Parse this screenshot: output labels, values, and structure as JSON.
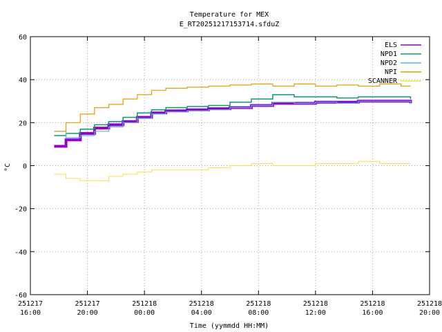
{
  "chart_data": {
    "type": "line",
    "title": "Temperature for MEX",
    "subtitle": "E_RT20251217153714.sfduZ",
    "xlabel": "Time (yymmdd HH:MM)",
    "ylabel": "°C",
    "ylim": [
      -60,
      60
    ],
    "yticks": [
      -60,
      -40,
      -20,
      0,
      20,
      40,
      60
    ],
    "xlim": [
      "2025-12-17 16:00",
      "2025-12-18 20:00"
    ],
    "xticks": [
      {
        "date": "251217",
        "time": "16:00",
        "x": "2025-12-17 16:00"
      },
      {
        "date": "251217",
        "time": "20:00",
        "x": "2025-12-17 20:00"
      },
      {
        "date": "251218",
        "time": "00:00",
        "x": "2025-12-18 00:00"
      },
      {
        "date": "251218",
        "time": "04:00",
        "x": "2025-12-18 04:00"
      },
      {
        "date": "251218",
        "time": "08:00",
        "x": "2025-12-18 08:00"
      },
      {
        "date": "251218",
        "time": "12:00",
        "x": "2025-12-18 12:00"
      },
      {
        "date": "251218",
        "time": "16:00",
        "x": "2025-12-18 16:00"
      },
      {
        "date": "251218",
        "time": "20:00",
        "x": "2025-12-18 20:00"
      }
    ],
    "grid": true,
    "legend_position": "top-right",
    "series": [
      {
        "name": "ELS",
        "color": "#9400d3",
        "x": [
          "2025-12-17 17:40",
          "2025-12-17 18:30",
          "2025-12-17 19:30",
          "2025-12-17 20:30",
          "2025-12-17 21:30",
          "2025-12-17 22:30",
          "2025-12-17 23:30",
          "2025-12-18 00:30",
          "2025-12-18 01:30",
          "2025-12-18 03:00",
          "2025-12-18 04:30",
          "2025-12-18 06:00",
          "2025-12-18 07:30",
          "2025-12-18 09:00",
          "2025-12-18 10:30",
          "2025-12-18 12:00",
          "2025-12-18 13:30",
          "2025-12-18 15:00",
          "2025-12-18 16:30",
          "2025-12-18 18:00",
          "2025-12-18 18:40"
        ],
        "values": [
          9,
          12,
          15,
          17.5,
          19,
          20.5,
          22.5,
          24.5,
          25.5,
          26,
          26.5,
          27,
          28,
          29,
          29,
          29.5,
          29.5,
          30,
          30,
          30,
          29
        ]
      },
      {
        "name": "NPD1",
        "color": "#009e73",
        "x": [
          "2025-12-17 17:40",
          "2025-12-17 18:30",
          "2025-12-17 19:30",
          "2025-12-17 20:30",
          "2025-12-17 21:30",
          "2025-12-17 22:30",
          "2025-12-17 23:30",
          "2025-12-18 00:30",
          "2025-12-18 01:30",
          "2025-12-18 03:00",
          "2025-12-18 04:30",
          "2025-12-18 06:00",
          "2025-12-18 07:30",
          "2025-12-18 09:00",
          "2025-12-18 10:30",
          "2025-12-18 12:00",
          "2025-12-18 13:30",
          "2025-12-18 15:00",
          "2025-12-18 16:30",
          "2025-12-18 18:00",
          "2025-12-18 18:40"
        ],
        "values": [
          14,
          15,
          17,
          19,
          20.5,
          22.5,
          24.5,
          26,
          27,
          27.5,
          28,
          29.5,
          31,
          33,
          32,
          32,
          31.5,
          32,
          32,
          32,
          31
        ]
      },
      {
        "name": "NPD2",
        "color": "#56b4e9",
        "x": [
          "2025-12-17 17:40",
          "2025-12-17 18:30",
          "2025-12-17 19:30",
          "2025-12-17 20:30",
          "2025-12-17 21:30",
          "2025-12-17 22:30",
          "2025-12-17 23:30",
          "2025-12-18 00:30",
          "2025-12-18 01:30",
          "2025-12-18 03:00",
          "2025-12-18 04:30",
          "2025-12-18 06:00",
          "2025-12-18 07:30",
          "2025-12-18 09:00",
          "2025-12-18 10:30",
          "2025-12-18 12:00",
          "2025-12-18 13:30",
          "2025-12-18 15:00",
          "2025-12-18 16:30",
          "2025-12-18 18:00",
          "2025-12-18 18:40"
        ],
        "values": [
          16,
          13,
          14,
          16,
          18,
          20,
          22,
          24,
          25,
          25.5,
          26,
          27,
          28,
          29.5,
          29,
          29.5,
          29,
          30,
          30,
          30,
          29
        ]
      },
      {
        "name": "NPI",
        "color": "#e69f00",
        "x": [
          "2025-12-17 17:40",
          "2025-12-17 18:30",
          "2025-12-17 19:30",
          "2025-12-17 20:30",
          "2025-12-17 21:30",
          "2025-12-17 22:30",
          "2025-12-17 23:30",
          "2025-12-18 00:30",
          "2025-12-18 01:30",
          "2025-12-18 03:00",
          "2025-12-18 04:30",
          "2025-12-18 06:00",
          "2025-12-18 07:30",
          "2025-12-18 09:00",
          "2025-12-18 10:30",
          "2025-12-18 12:00",
          "2025-12-18 13:30",
          "2025-12-18 15:00",
          "2025-12-18 16:30",
          "2025-12-18 18:00",
          "2025-12-18 18:40"
        ],
        "values": [
          16,
          20,
          24,
          27,
          28.5,
          31,
          33,
          35,
          36,
          36.5,
          37,
          37.5,
          38,
          37,
          38,
          37,
          37.5,
          37,
          38,
          37,
          37
        ]
      },
      {
        "name": "SCANNER",
        "color": "#f0e442",
        "x": [
          "2025-12-17 17:40",
          "2025-12-17 18:30",
          "2025-12-17 19:30",
          "2025-12-17 20:30",
          "2025-12-17 21:30",
          "2025-12-17 22:30",
          "2025-12-17 23:30",
          "2025-12-18 00:30",
          "2025-12-18 01:30",
          "2025-12-18 03:00",
          "2025-12-18 04:30",
          "2025-12-18 06:00",
          "2025-12-18 07:30",
          "2025-12-18 09:00",
          "2025-12-18 10:30",
          "2025-12-18 12:00",
          "2025-12-18 13:30",
          "2025-12-18 15:00",
          "2025-12-18 16:30",
          "2025-12-18 18:00",
          "2025-12-18 18:40"
        ],
        "values": [
          -4,
          -6,
          -7,
          -7,
          -5,
          -4,
          -3,
          -2,
          -2,
          -2,
          -1,
          0,
          1,
          0,
          0,
          1,
          1,
          2,
          1,
          1,
          1
        ]
      }
    ]
  }
}
